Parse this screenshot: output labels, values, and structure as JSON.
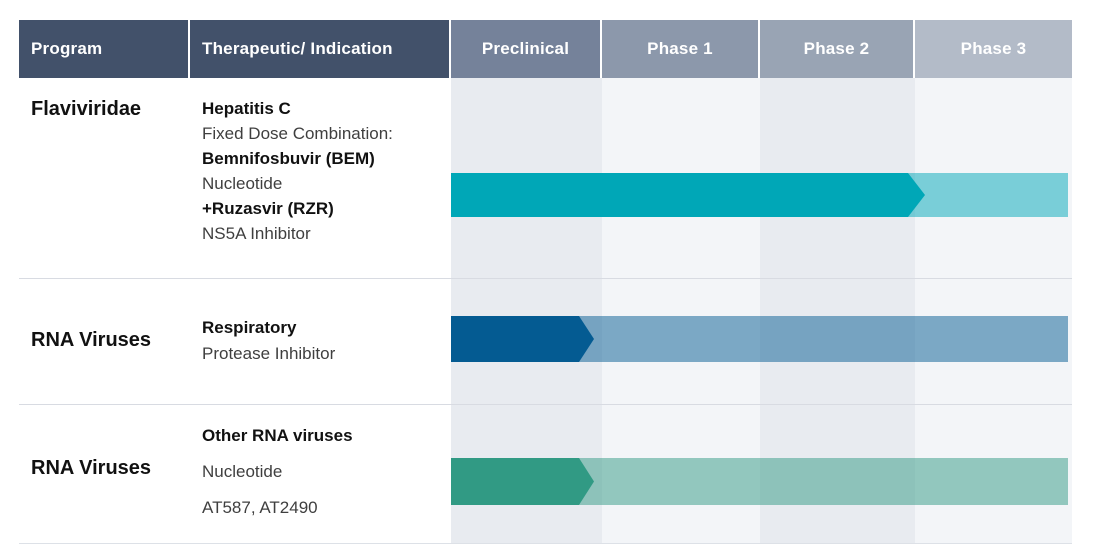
{
  "header": {
    "cells": [
      {
        "label": "Program",
        "bg": "#42516A"
      },
      {
        "label": "Therapeutic/ Indication",
        "bg": "#42516A"
      },
      {
        "label": "Preclinical",
        "bg": "#75829A"
      },
      {
        "label": "Phase 1",
        "bg": "#8C98AB"
      },
      {
        "label": "Phase 2",
        "bg": "#99A4B4"
      },
      {
        "label": "Phase 3",
        "bg": "#B3BBC8"
      }
    ],
    "text_color": "#FFFFFF"
  },
  "body": {
    "column_tints": {
      "preclinical": "#E8EBF0",
      "phase1": "#F3F5F8",
      "phase2": "#E8EBF0",
      "phase3": "#F3F5F8"
    }
  },
  "rows": [
    {
      "program": "Flaviviridae",
      "indication_lines": [
        "Hepatitis C",
        "Fixed Dose Combination:",
        "Bemnifosbuvir (BEM)",
        "Nucleotide",
        "+Ruzasvir (RZR)",
        "NS5A Inhibitor"
      ],
      "bar": {
        "solid_color": "#00A7B7",
        "faded_color": "rgba(0,167,183,0.5)",
        "solid_span": "Preclinical through late Phase 2",
        "faded_span": "Phase 3"
      }
    },
    {
      "program": "RNA Viruses",
      "indication_lines": [
        "Respiratory",
        "Protease Inhibitor"
      ],
      "bar": {
        "solid_color": "#045B92",
        "faded_color": "rgba(4,91,146,0.5)",
        "solid_span": "Preclinical",
        "faded_span": "Phase 1 through Phase 3"
      }
    },
    {
      "program": "RNA Viruses",
      "indication_lines": [
        "Other RNA viruses",
        "Nucleotide",
        "AT587, AT2490"
      ],
      "bar": {
        "solid_color": "#319A84",
        "faded_color": "rgba(49,154,132,0.5)",
        "solid_span": "Preclinical",
        "faded_span": "Phase 1 through Phase 3"
      }
    }
  ]
}
